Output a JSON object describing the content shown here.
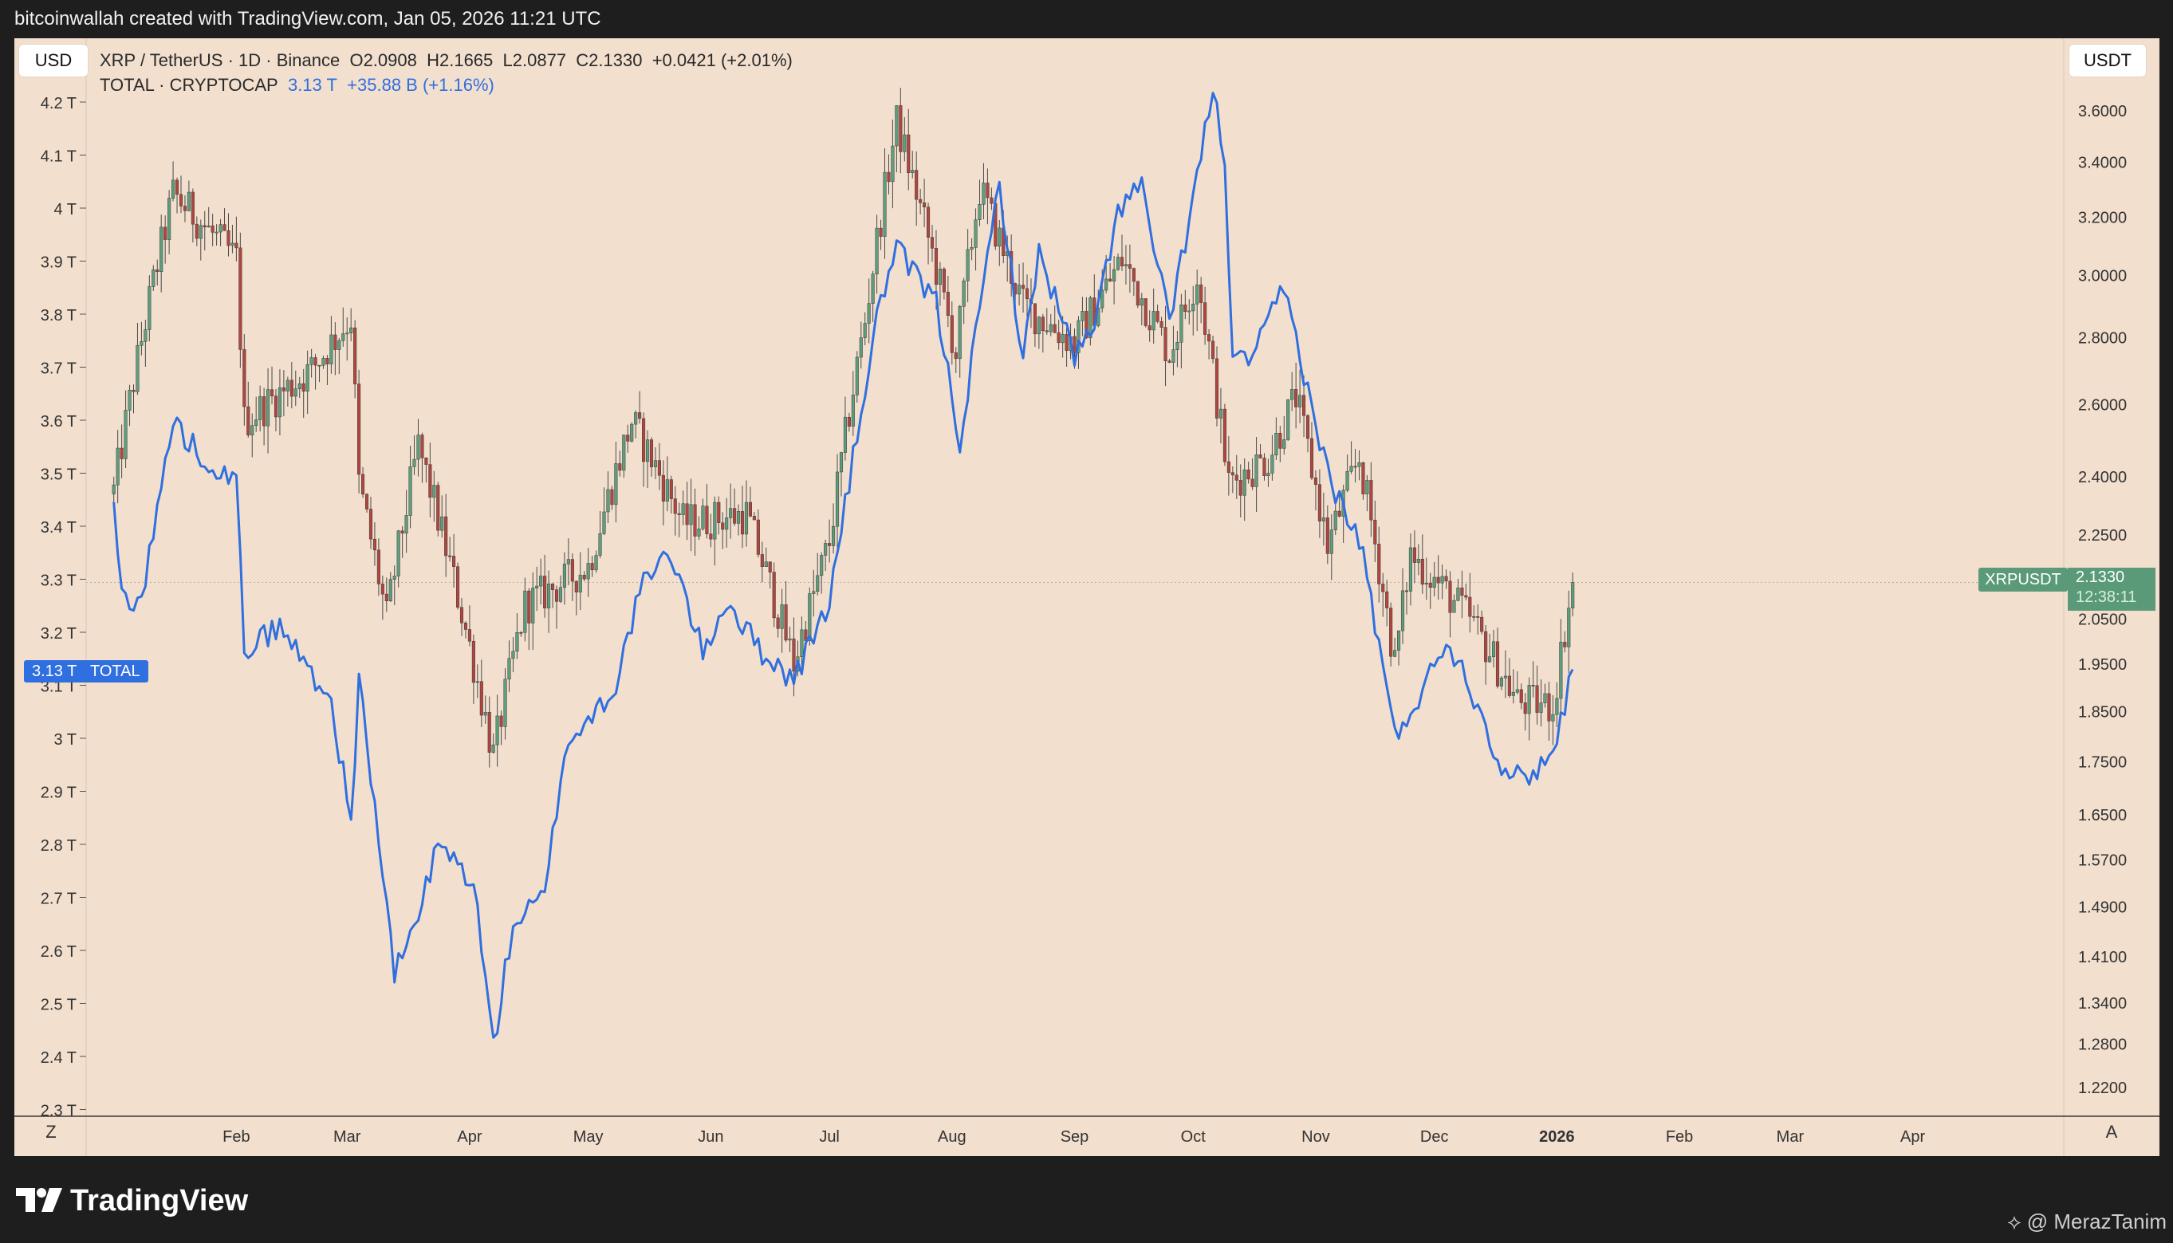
{
  "header": {
    "attribution": "bitcoinwallah created with TradingView.com, Jan 05, 2026 11:21 UTC"
  },
  "legend": {
    "line1": {
      "symbol": "XRP / TetherUS · 1D · Binance",
      "open": "O2.0908",
      "high": "H2.1665",
      "low": "L2.0877",
      "close": "C2.1330",
      "change": "+0.0421 (+2.01%)"
    },
    "line2": {
      "symbol": "TOTAL · CRYPTOCAP",
      "value": "3.13 T",
      "change": "+35.88 B (+1.16%)"
    }
  },
  "buttons": {
    "left_currency": "USD",
    "right_currency": "USDT",
    "zoom_left": "Z",
    "auto_right": "A"
  },
  "badges": {
    "total_value": "3.13 T",
    "total_label": "TOTAL",
    "xrp_label": "XRPUSDT",
    "xrp_price": "2.1330",
    "xrp_countdown": "12:38:11"
  },
  "footer": {
    "brand": "TradingView",
    "watermark": "@ MerazTanim"
  },
  "colors": {
    "background": "#f2dfcd",
    "up": "#5e9e7c",
    "down": "#b0463f",
    "total_line": "#2f6fe0",
    "axis_text": "#333333"
  },
  "chart_data": {
    "type": "candlestick+line",
    "interval": "1D",
    "x_ticks": [
      "Feb",
      "Mar",
      "Apr",
      "May",
      "Jun",
      "Jul",
      "Aug",
      "Sep",
      "Oct",
      "Nov",
      "Dec",
      "2026",
      "Feb",
      "Mar",
      "Apr"
    ],
    "left_axis": {
      "series": "TOTAL",
      "ticks": [
        "4.2 T",
        "4.1 T",
        "4 T",
        "3.9 T",
        "3.8 T",
        "3.7 T",
        "3.6 T",
        "3.5 T",
        "3.4 T",
        "3.3 T",
        "3.2 T",
        "3.1 T",
        "3 T",
        "2.9 T",
        "2.8 T",
        "2.7 T",
        "2.6 T",
        "2.5 T",
        "2.4 T",
        "2.3 T"
      ],
      "range": [
        2.3,
        4.22
      ]
    },
    "right_axis": {
      "series": "XRPUSDT",
      "scale": "log",
      "ticks": [
        "3.6000",
        "3.4000",
        "3.2000",
        "3.0000",
        "2.8000",
        "2.6000",
        "2.4000",
        "2.2500",
        "2.1330",
        "2.0500",
        "1.9500",
        "1.8500",
        "1.7500",
        "1.6500",
        "1.5700",
        "1.4900",
        "1.4100",
        "1.3400",
        "1.2800",
        "1.2200"
      ],
      "range": [
        1.18,
        3.75
      ]
    },
    "xrp_close_anchors": [
      {
        "date": "2025-01-01",
        "close": 2.36
      },
      {
        "date": "2025-01-16",
        "close": 3.28
      },
      {
        "date": "2025-02-01",
        "close": 3.05
      },
      {
        "date": "2025-02-03",
        "close": 2.55
      },
      {
        "date": "2025-02-20",
        "close": 2.7
      },
      {
        "date": "2025-03-02",
        "close": 2.86
      },
      {
        "date": "2025-03-04",
        "close": 2.38
      },
      {
        "date": "2025-03-11",
        "close": 2.05
      },
      {
        "date": "2025-03-19",
        "close": 2.48
      },
      {
        "date": "2025-04-07",
        "close": 1.76
      },
      {
        "date": "2025-04-15",
        "close": 2.08
      },
      {
        "date": "2025-05-01",
        "close": 2.17
      },
      {
        "date": "2025-05-12",
        "close": 2.55
      },
      {
        "date": "2025-05-25",
        "close": 2.28
      },
      {
        "date": "2025-06-10",
        "close": 2.3
      },
      {
        "date": "2025-06-22",
        "close": 1.95
      },
      {
        "date": "2025-07-01",
        "close": 2.23
      },
      {
        "date": "2025-07-10",
        "close": 2.85
      },
      {
        "date": "2025-07-18",
        "close": 3.55
      },
      {
        "date": "2025-08-02",
        "close": 2.75
      },
      {
        "date": "2025-08-08",
        "close": 3.3
      },
      {
        "date": "2025-08-19",
        "close": 2.9
      },
      {
        "date": "2025-09-01",
        "close": 2.78
      },
      {
        "date": "2025-09-13",
        "close": 3.05
      },
      {
        "date": "2025-09-25",
        "close": 2.75
      },
      {
        "date": "2025-10-02",
        "close": 3.0
      },
      {
        "date": "2025-10-10",
        "close": 2.38
      },
      {
        "date": "2025-10-20",
        "close": 2.45
      },
      {
        "date": "2025-10-27",
        "close": 2.62
      },
      {
        "date": "2025-11-04",
        "close": 2.22
      },
      {
        "date": "2025-11-12",
        "close": 2.45
      },
      {
        "date": "2025-11-21",
        "close": 1.95
      },
      {
        "date": "2025-11-25",
        "close": 2.2
      },
      {
        "date": "2025-12-10",
        "close": 2.05
      },
      {
        "date": "2025-12-22",
        "close": 1.87
      },
      {
        "date": "2025-12-31",
        "close": 1.86
      },
      {
        "date": "2026-01-05",
        "close": 2.133
      }
    ],
    "total_anchors": [
      {
        "date": "2025-01-01",
        "value": 3.43
      },
      {
        "date": "2025-01-03",
        "value": 3.27
      },
      {
        "date": "2025-01-08",
        "value": 3.26
      },
      {
        "date": "2025-01-16",
        "value": 3.6
      },
      {
        "date": "2025-01-21",
        "value": 3.55
      },
      {
        "date": "2025-02-01",
        "value": 3.48
      },
      {
        "date": "2025-02-03",
        "value": 3.17
      },
      {
        "date": "2025-02-12",
        "value": 3.21
      },
      {
        "date": "2025-02-25",
        "value": 3.07
      },
      {
        "date": "2025-03-02",
        "value": 2.84
      },
      {
        "date": "2025-03-04",
        "value": 3.11
      },
      {
        "date": "2025-03-10",
        "value": 2.75
      },
      {
        "date": "2025-03-13",
        "value": 2.55
      },
      {
        "date": "2025-03-20",
        "value": 2.69
      },
      {
        "date": "2025-03-24",
        "value": 2.8
      },
      {
        "date": "2025-04-02",
        "value": 2.73
      },
      {
        "date": "2025-04-07",
        "value": 2.42
      },
      {
        "date": "2025-04-12",
        "value": 2.65
      },
      {
        "date": "2025-04-20",
        "value": 2.7
      },
      {
        "date": "2025-04-25",
        "value": 2.98
      },
      {
        "date": "2025-05-08",
        "value": 3.1
      },
      {
        "date": "2025-05-14",
        "value": 3.28
      },
      {
        "date": "2025-05-22",
        "value": 3.35
      },
      {
        "date": "2025-05-30",
        "value": 3.16
      },
      {
        "date": "2025-06-05",
        "value": 3.26
      },
      {
        "date": "2025-06-13",
        "value": 3.17
      },
      {
        "date": "2025-06-22",
        "value": 3.11
      },
      {
        "date": "2025-07-01",
        "value": 3.26
      },
      {
        "date": "2025-07-10",
        "value": 3.66
      },
      {
        "date": "2025-07-14",
        "value": 3.83
      },
      {
        "date": "2025-07-18",
        "value": 3.92
      },
      {
        "date": "2025-07-28",
        "value": 3.82
      },
      {
        "date": "2025-08-03",
        "value": 3.56
      },
      {
        "date": "2025-08-13",
        "value": 4.05
      },
      {
        "date": "2025-08-19",
        "value": 3.71
      },
      {
        "date": "2025-08-23",
        "value": 3.92
      },
      {
        "date": "2025-09-01",
        "value": 3.72
      },
      {
        "date": "2025-09-06",
        "value": 3.77
      },
      {
        "date": "2025-09-12",
        "value": 4.0
      },
      {
        "date": "2025-09-18",
        "value": 4.04
      },
      {
        "date": "2025-09-25",
        "value": 3.78
      },
      {
        "date": "2025-09-30",
        "value": 3.98
      },
      {
        "date": "2025-10-06",
        "value": 4.22
      },
      {
        "date": "2025-10-09",
        "value": 4.1
      },
      {
        "date": "2025-10-11",
        "value": 3.7
      },
      {
        "date": "2025-10-17",
        "value": 3.73
      },
      {
        "date": "2025-10-24",
        "value": 3.85
      },
      {
        "date": "2025-11-04",
        "value": 3.5
      },
      {
        "date": "2025-11-13",
        "value": 3.35
      },
      {
        "date": "2025-11-21",
        "value": 3.0
      },
      {
        "date": "2025-11-30",
        "value": 3.12
      },
      {
        "date": "2025-12-04",
        "value": 3.19
      },
      {
        "date": "2025-12-10",
        "value": 3.1
      },
      {
        "date": "2025-12-18",
        "value": 2.95
      },
      {
        "date": "2025-12-23",
        "value": 2.92
      },
      {
        "date": "2025-12-31",
        "value": 2.97
      },
      {
        "date": "2026-01-05",
        "value": 3.13
      }
    ]
  }
}
